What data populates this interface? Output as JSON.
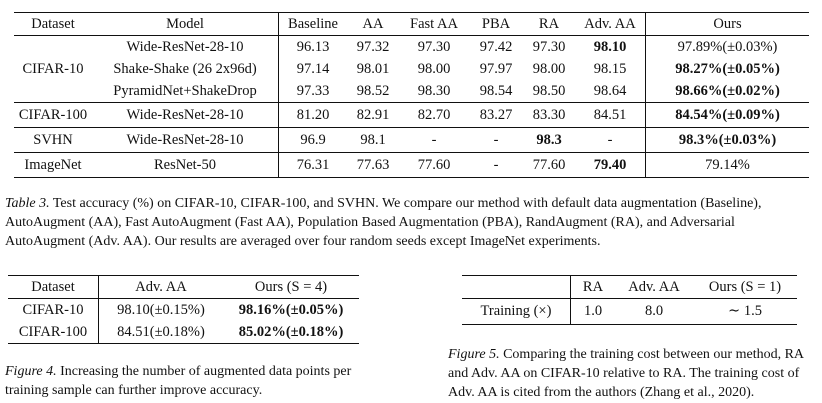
{
  "table3": {
    "headers": [
      "Dataset",
      "Model",
      "Baseline",
      "AA",
      "Fast AA",
      "PBA",
      "RA",
      "Adv. AA",
      "Ours"
    ],
    "rows": [
      {
        "dataset": "",
        "model": "Wide-ResNet-28-10",
        "baseline": "96.13",
        "aa": "97.32",
        "fast_aa": "97.30",
        "pba": "97.42",
        "ra": "97.30",
        "adv_aa": "98.10",
        "ours": "97.89%(±0.03%)"
      },
      {
        "dataset": "CIFAR-10",
        "model": "Shake-Shake (26 2x96d)",
        "baseline": "97.14",
        "aa": "98.01",
        "fast_aa": "98.00",
        "pba": "97.97",
        "ra": "98.00",
        "adv_aa": "98.15",
        "ours": "98.27%(±0.05%)"
      },
      {
        "dataset": "",
        "model": "PyramidNet+ShakeDrop",
        "baseline": "97.33",
        "aa": "98.52",
        "fast_aa": "98.30",
        "pba": "98.54",
        "ra": "98.50",
        "adv_aa": "98.64",
        "ours": "98.66%(±0.02%)"
      },
      {
        "dataset": "CIFAR-100",
        "model": "Wide-ResNet-28-10",
        "baseline": "81.20",
        "aa": "82.91",
        "fast_aa": "82.70",
        "pba": "83.27",
        "ra": "83.30",
        "adv_aa": "84.51",
        "ours": "84.54%(±0.09%)"
      },
      {
        "dataset": "SVHN",
        "model": "Wide-ResNet-28-10",
        "baseline": "96.9",
        "aa": "98.1",
        "fast_aa": "-",
        "pba": "-",
        "ra": "98.3",
        "adv_aa": "-",
        "ours": "98.3%(±0.03%)"
      },
      {
        "dataset": "ImageNet",
        "model": "ResNet-50",
        "baseline": "76.31",
        "aa": "77.63",
        "fast_aa": "77.60",
        "pba": "-",
        "ra": "77.60",
        "adv_aa": "79.40",
        "ours": "79.14%"
      }
    ],
    "caption_label": "Table 3.",
    "caption_text": " Test accuracy (%) on CIFAR-10, CIFAR-100, and SVHN. We compare our method with default data augmentation (Baseline), AutoAugment (AA), Fast AutoAugment (Fast AA), Population Based Augmentation (PBA), RandAugment (RA), and Adversarial AutoAugment (Adv. AA). Our results are averaged over four random seeds except ImageNet experiments."
  },
  "table4": {
    "headers": [
      "Dataset",
      "Adv. AA",
      "Ours (S = 4)"
    ],
    "rows": [
      {
        "dataset": "CIFAR-10",
        "adv_aa": "98.10(±0.15%)",
        "ours": "98.16%(±0.05%)"
      },
      {
        "dataset": "CIFAR-100",
        "adv_aa": "84.51(±0.18%)",
        "ours": "85.02%(±0.18%)"
      }
    ],
    "caption_label": "Figure 4.",
    "caption_text": " Increasing the number of augmented data points per training sample can further improve accuracy."
  },
  "table5": {
    "headers": [
      "",
      "RA",
      "Adv. AA",
      "Ours (S = 1)"
    ],
    "row": {
      "label": "Training (×)",
      "ra": "1.0",
      "adv_aa": "8.0",
      "ours": "∼ 1.5"
    },
    "caption_label": "Figure 5.",
    "caption_text": " Comparing the training cost between our method, RA and Adv. AA on CIFAR-10 relative to RA. The training cost of Adv. AA is cited from the authors (Zhang et al., 2020)."
  }
}
